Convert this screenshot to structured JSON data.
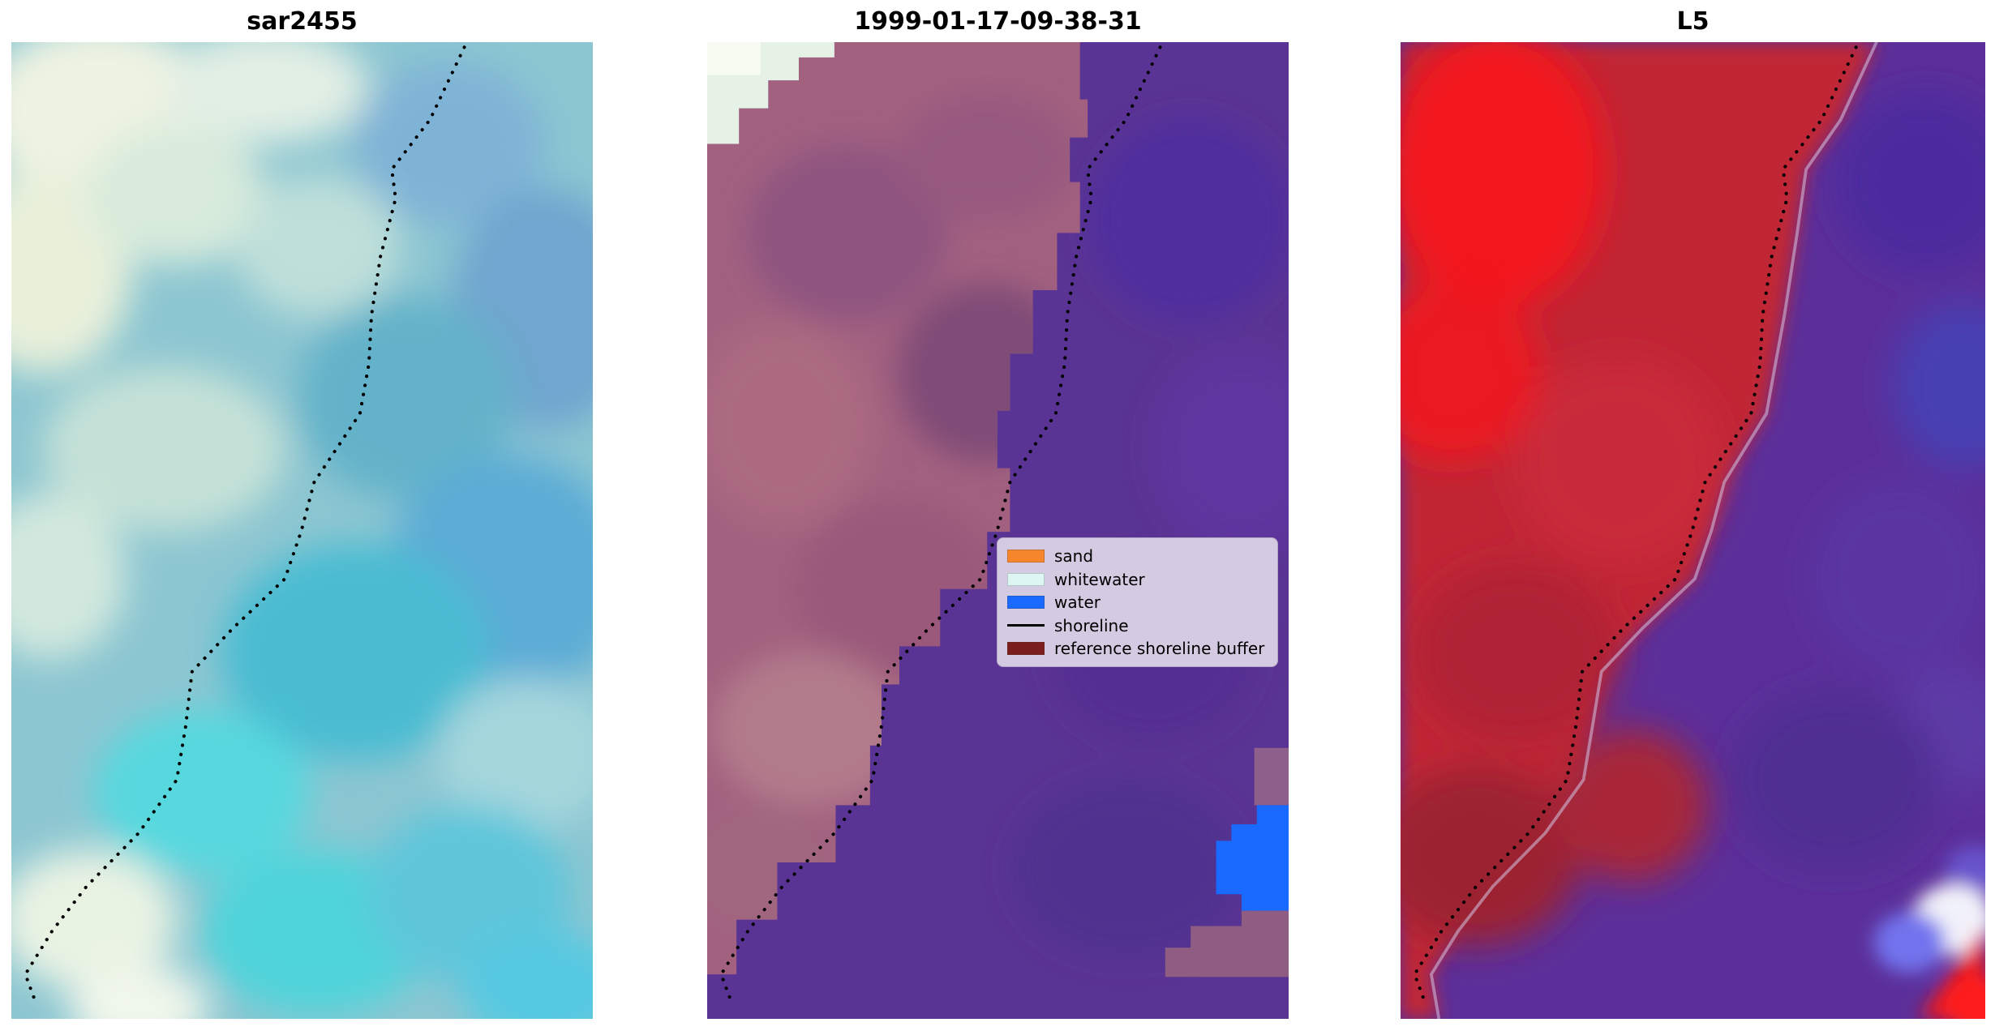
{
  "chart_data": {
    "type": "image",
    "title": "",
    "panels": [
      {
        "title": "sar2455",
        "content": "SAR backscatter composite, mottled cyan/teal/cream tones with dotted shoreline overlay"
      },
      {
        "title": "1999-01-17-09-38-31",
        "content": "pixel classification map: purple background, mauve reference-shoreline-buffer band, pale whitewater blocks top-left, blue water patch bottom-right, dotted shoreline overlay, legend box"
      },
      {
        "title": "L5",
        "content": "Landsat 5 false-colour composite: red land, purple water, bright patches bottom-right, dotted shoreline overlay"
      }
    ],
    "legend": {
      "position": "middle panel, centre-right",
      "entries": [
        {
          "label": "sand",
          "color": "#f5862b",
          "swatch": "rect"
        },
        {
          "label": "whitewater",
          "color": "#ddf6f4",
          "swatch": "rect"
        },
        {
          "label": "water",
          "color": "#1a6aff",
          "swatch": "rect"
        },
        {
          "label": "shoreline",
          "color": "#000000",
          "swatch": "line"
        },
        {
          "label": "reference shoreline buffer",
          "color": "#7c1d1d",
          "swatch": "rect"
        }
      ]
    },
    "shoreline": {
      "style": "dotted",
      "color": "#000000",
      "points": [
        [
          356,
          4
        ],
        [
          329,
          61
        ],
        [
          299,
          100
        ],
        [
          302,
          123
        ],
        [
          290,
          169
        ],
        [
          283,
          215
        ],
        [
          281,
          253
        ],
        [
          274,
          292
        ],
        [
          238,
          346
        ],
        [
          228,
          384
        ],
        [
          215,
          422
        ],
        [
          174,
          461
        ],
        [
          142,
          495
        ],
        [
          137,
          538
        ],
        [
          130,
          580
        ],
        [
          100,
          622
        ],
        [
          59,
          664
        ],
        [
          32,
          699
        ],
        [
          11,
          733
        ],
        [
          18,
          752
        ]
      ]
    },
    "regions": {
      "class_boundary_steps": [
        [
          293,
          0
        ],
        [
          299,
          45
        ],
        [
          285,
          75
        ],
        [
          293,
          110
        ],
        [
          275,
          150
        ],
        [
          256,
          195
        ],
        [
          238,
          245
        ],
        [
          228,
          290
        ],
        [
          238,
          335
        ],
        [
          220,
          385
        ],
        [
          183,
          430
        ],
        [
          151,
          475
        ],
        [
          137,
          505
        ],
        [
          128,
          553
        ],
        [
          101,
          600
        ],
        [
          55,
          645
        ],
        [
          23,
          690
        ],
        [
          11,
          733
        ]
      ],
      "mint_notch": [
        [
          0,
          80
        ],
        [
          25,
          52
        ],
        [
          48,
          30
        ],
        [
          72,
          12
        ],
        [
          100,
          0
        ]
      ],
      "red_boundary": [
        [
          372,
          0
        ],
        [
          344,
          61
        ],
        [
          317,
          100
        ],
        [
          310,
          150
        ],
        [
          300,
          215
        ],
        [
          293,
          253
        ],
        [
          286,
          292
        ],
        [
          253,
          346
        ],
        [
          243,
          384
        ],
        [
          230,
          422
        ],
        [
          189,
          461
        ],
        [
          157,
          495
        ],
        [
          150,
          538
        ],
        [
          143,
          580
        ],
        [
          113,
          622
        ],
        [
          72,
          664
        ],
        [
          45,
          699
        ],
        [
          24,
          733
        ],
        [
          30,
          768
        ]
      ]
    },
    "colors": {
      "sar_base": "#8cc6d1",
      "purple_class": "#5a3494",
      "buffer_mauve": "#a2617f",
      "water_blue": "#1a6aff",
      "whitewater_pale": "#e6f2e6",
      "l5_red": "#c12736",
      "l5_purple": "#5b2f9a"
    }
  }
}
